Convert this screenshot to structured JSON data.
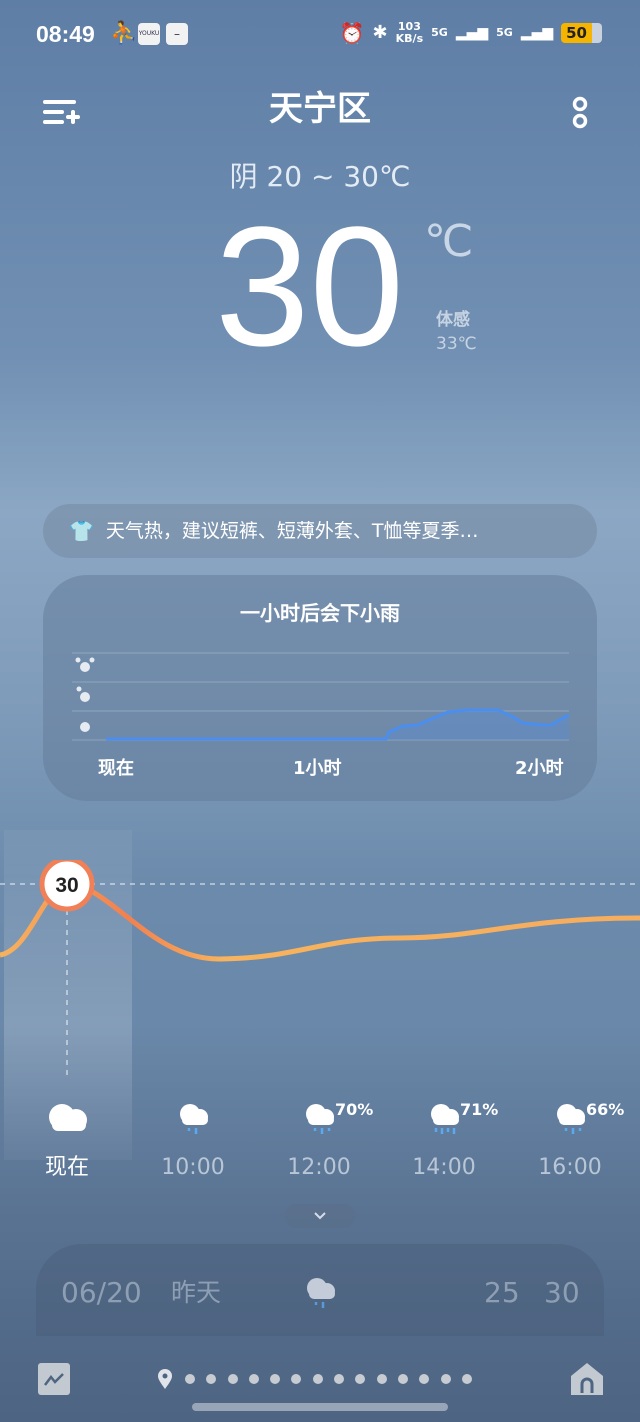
{
  "status": {
    "time": "08:49",
    "app1": "YOUKU",
    "net_speed": "103",
    "net_unit": "KB/s",
    "sim1": "5G",
    "sim2": "5G",
    "battery": "50"
  },
  "header": {
    "city": "天宁区",
    "condition": "阴  20 ~ 30℃",
    "temp": "30",
    "unit": "℃",
    "feels_label": "体感",
    "feels_value": "33℃"
  },
  "tip": {
    "icon": "tshirt-icon",
    "text": "天气热，建议短裤、短薄外套、T恤等夏季…"
  },
  "precip": {
    "title": "一小时后会下小雨",
    "x_labels": [
      "现在",
      "1小时",
      "2小时"
    ],
    "line_color": "#4a8ff0"
  },
  "temp_curve": {
    "current_value": "30",
    "color": "#f5a050"
  },
  "hourly": [
    {
      "time": "现在",
      "icon": "cloudy-icon",
      "pop": ""
    },
    {
      "time": "10:00",
      "icon": "light-rain-icon",
      "pop": ""
    },
    {
      "time": "12:00",
      "icon": "light-rain-icon",
      "pop": "70%"
    },
    {
      "time": "14:00",
      "icon": "moderate-rain-icon",
      "pop": "71%"
    },
    {
      "time": "16:00",
      "icon": "light-rain-icon",
      "pop": "66%"
    }
  ],
  "daily": [
    {
      "date": "06/20",
      "day": "昨天",
      "icon": "light-rain-icon",
      "low": "25",
      "high": "30"
    }
  ]
}
